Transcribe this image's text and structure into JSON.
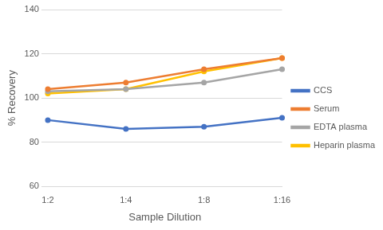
{
  "chart_data": {
    "type": "line",
    "x_label": "Sample Dilution",
    "y_label": "% Recovery",
    "categories": [
      "1:2",
      "1:4",
      "1:8",
      "1:16"
    ],
    "series": [
      {
        "name": "CCS",
        "color": "#4472c4",
        "values": [
          90,
          86,
          87,
          91
        ]
      },
      {
        "name": "Serum",
        "color": "#ed7d31",
        "values": [
          104,
          107,
          113,
          118
        ]
      },
      {
        "name": "EDTA plasma",
        "color": "#a5a5a5",
        "values": [
          103,
          104,
          107,
          113
        ]
      },
      {
        "name": "Heparin plasma",
        "color": "#ffc000",
        "values": [
          102,
          104,
          112,
          118
        ]
      }
    ],
    "ylim": [
      60,
      140
    ],
    "yticks": [
      60,
      80,
      100,
      120,
      140
    ],
    "grid": true,
    "legend": "right",
    "marker": "circle"
  }
}
